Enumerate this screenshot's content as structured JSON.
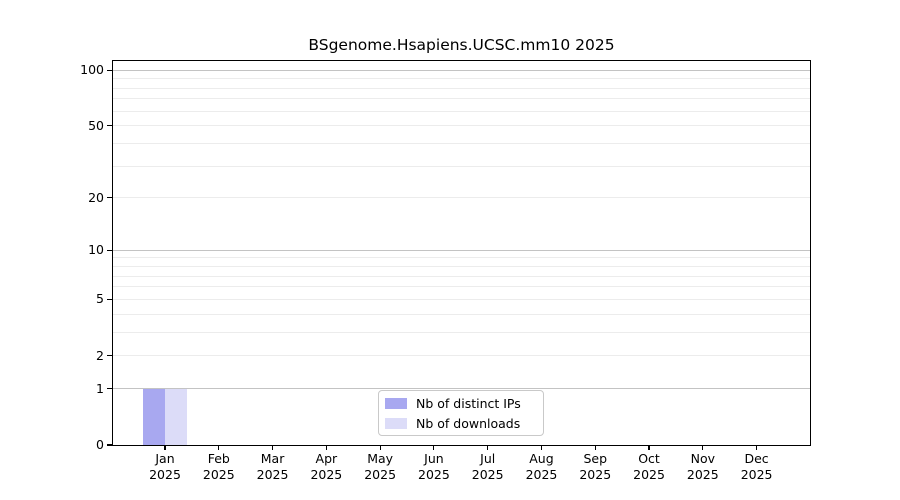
{
  "chart_data": {
    "type": "bar",
    "title": "BSgenome.Hsapiens.UCSC.mm10 2025",
    "categories": [
      "Jan",
      "Feb",
      "Mar",
      "Apr",
      "May",
      "Jun",
      "Jul",
      "Aug",
      "Sep",
      "Oct",
      "Nov",
      "Dec"
    ],
    "category_year": "2025",
    "series": [
      {
        "name": "Nb of distinct IPs",
        "color": "#a8a8f0",
        "values": [
          1,
          0,
          0,
          0,
          0,
          0,
          0,
          0,
          0,
          0,
          0,
          0
        ]
      },
      {
        "name": "Nb of downloads",
        "color": "#dcdcf8",
        "values": [
          1,
          0,
          0,
          0,
          0,
          0,
          0,
          0,
          0,
          0,
          0,
          0
        ]
      }
    ],
    "xlabel": "",
    "ylabel": "",
    "y_scale": "log1p",
    "ylim": [
      0,
      112
    ],
    "y_ticks": [
      0,
      1,
      2,
      5,
      10,
      20,
      50,
      100
    ],
    "major_gridlines": [
      1,
      10,
      100
    ],
    "minor_gridlines": [
      2,
      3,
      4,
      5,
      6,
      7,
      8,
      9,
      20,
      30,
      40,
      50,
      60,
      70,
      80,
      90
    ],
    "grid": true,
    "legend_position": "bottom-center"
  },
  "colors": {
    "major_grid": "#c3c3c3",
    "minor_grid": "#ececec",
    "axis": "#000000",
    "background": "#ffffff",
    "legend_border": "#c9c9c9"
  }
}
